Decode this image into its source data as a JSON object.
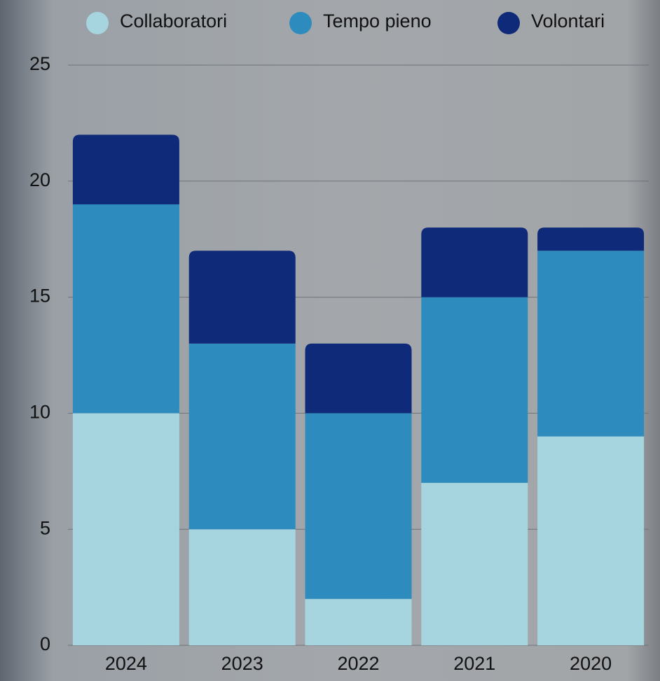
{
  "chart_data": {
    "type": "stacked_bar",
    "categories": [
      "2024",
      "2023",
      "2022",
      "2021",
      "2020"
    ],
    "series": [
      {
        "name": "Collaboratori",
        "color": "#a6d5e0",
        "values": [
          10,
          5,
          2,
          7,
          9
        ]
      },
      {
        "name": "Tempo pieno",
        "color": "#2e8bbd",
        "values": [
          9,
          8,
          8,
          8,
          8
        ]
      },
      {
        "name": "Volontari",
        "color": "#0e2a78",
        "values": [
          3,
          4,
          3,
          3,
          1
        ]
      }
    ],
    "ylim": [
      0,
      25
    ],
    "yticks": [
      0,
      5,
      10,
      15,
      20,
      25
    ],
    "grid": true,
    "legend": "top"
  }
}
